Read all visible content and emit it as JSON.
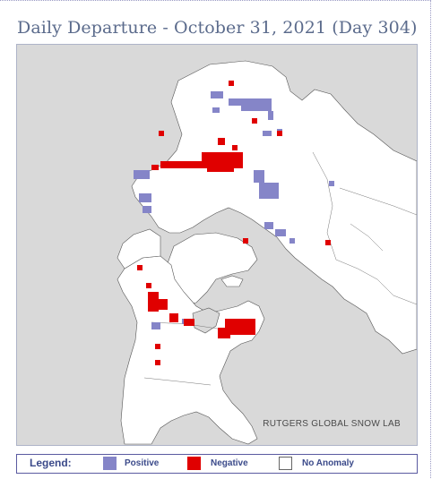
{
  "title": "Daily Departure - October 31, 2021 (Day 304)",
  "credit": "RUTGERS GLOBAL SNOW LAB",
  "legend": {
    "title": "Legend:",
    "items": [
      {
        "label": "Positive",
        "color": "#8585c8"
      },
      {
        "label": "Negative",
        "color": "#e00000"
      },
      {
        "label": "No Anomaly",
        "color": "#ffffff"
      }
    ]
  },
  "colors": {
    "ocean": "#d9d9d9",
    "land": "#ffffff",
    "positive": "#8585c8",
    "negative": "#e00000"
  }
}
